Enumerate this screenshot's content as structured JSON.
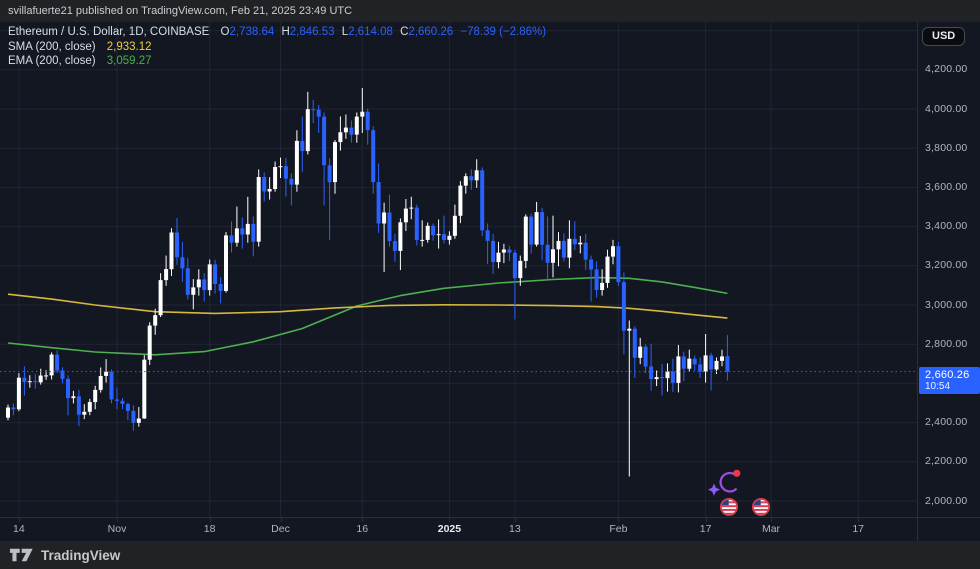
{
  "header": {
    "published_line": "svillafuerte21 published on TradingView.com, Feb 21, 2025 23:49 UTC"
  },
  "toolbar": {
    "currency_button": "USD"
  },
  "legend": {
    "symbol_title": "Ethereum / U.S. Dollar, 1D, COINBASE",
    "open_label": "O",
    "open": "2,738.64",
    "high_label": "H",
    "high": "2,846.53",
    "low_label": "L",
    "low": "2,614.08",
    "close_label": "C",
    "close": "2,660.26",
    "change": "−78.39 (−2.86%)",
    "sma_label": "SMA (200, close)",
    "sma_value": "2,933.12",
    "ema_label": "EMA (200, close)",
    "ema_value": "3,059.27"
  },
  "price_scale": {
    "labels": [
      {
        "text": "4,200.00",
        "price": 4200
      },
      {
        "text": "4,000.00",
        "price": 4000
      },
      {
        "text": "3,800.00",
        "price": 3800
      },
      {
        "text": "3,600.00",
        "price": 3600
      },
      {
        "text": "3,400.00",
        "price": 3400
      },
      {
        "text": "3,200.00",
        "price": 3200
      },
      {
        "text": "3,000.00",
        "price": 3000
      },
      {
        "text": "2,800.00",
        "price": 2800
      },
      {
        "text": "2,400.00",
        "price": 2400
      },
      {
        "text": "2,200.00",
        "price": 2200
      },
      {
        "text": "2,000.00",
        "price": 2000
      }
    ],
    "last_price_label": {
      "price_text": "2,660.26",
      "countdown": "10:54",
      "price": 2660.26
    }
  },
  "time_scale": {
    "ticks": [
      {
        "text": "14",
        "index": 2,
        "bold": false
      },
      {
        "text": "Nov",
        "index": 20,
        "bold": false
      },
      {
        "text": "18",
        "index": 37,
        "bold": false
      },
      {
        "text": "Dec",
        "index": 50,
        "bold": false
      },
      {
        "text": "16",
        "index": 65,
        "bold": false
      },
      {
        "text": "2025",
        "index": 81,
        "bold": true
      },
      {
        "text": "13",
        "index": 93,
        "bold": false
      },
      {
        "text": "Feb",
        "index": 112,
        "bold": false
      },
      {
        "text": "17",
        "index": 128,
        "bold": false
      },
      {
        "text": "Mar",
        "index": 140,
        "bold": false
      },
      {
        "text": "17",
        "index": 156,
        "bold": false
      }
    ]
  },
  "footer": {
    "brand": "TradingView"
  },
  "annotations": {
    "items": [
      "sparkle-flash-badge",
      "us-flag-sticker",
      "us-flag-sticker"
    ]
  },
  "colors": {
    "up": "#FFFFFF",
    "down": "#2962FF",
    "sma": "#D6B83E",
    "ema": "#4CAF50",
    "accent_blue": "#2962FF",
    "grid": "rgba(160,176,210,0.09)",
    "axis_text": "#B2B5BE",
    "chart_bg": "#131722",
    "frame_bg": "#212226",
    "border": "#2A2E39",
    "sticker_red": "#E03A4E",
    "sticker_blue": "#27408B",
    "sparkle_purple": "#9C4DE0",
    "dot_red": "#F23645"
  },
  "chart_data": {
    "type": "candlestick",
    "title": "Ethereum / U.S. Dollar, 1D, COINBASE",
    "interval": "1D",
    "first_candle_date": "2024-10-12",
    "last_candle_date": "2025-02-21",
    "ylim": [
      1920,
      4445
    ],
    "grid_prices": [
      2000,
      2200,
      2400,
      2600,
      2800,
      3000,
      3200,
      3400,
      3600,
      3800,
      4000,
      4200,
      4400
    ],
    "last_price": 2660.26,
    "candles": [
      [
        2425,
        2492,
        2412,
        2477
      ],
      [
        2477,
        2497,
        2438,
        2468
      ],
      [
        2468,
        2652,
        2458,
        2629
      ],
      [
        2629,
        2687,
        2538,
        2607
      ],
      [
        2607,
        2642,
        2578,
        2611
      ],
      [
        2611,
        2648,
        2573,
        2606
      ],
      [
        2606,
        2675,
        2594,
        2640
      ],
      [
        2640,
        2668,
        2618,
        2641
      ],
      [
        2641,
        2758,
        2620,
        2747
      ],
      [
        2747,
        2769,
        2653,
        2666
      ],
      [
        2666,
        2682,
        2600,
        2623
      ],
      [
        2623,
        2641,
        2438,
        2525
      ],
      [
        2525,
        2562,
        2498,
        2534
      ],
      [
        2534,
        2567,
        2382,
        2440
      ],
      [
        2440,
        2494,
        2418,
        2455
      ],
      [
        2455,
        2521,
        2438,
        2505
      ],
      [
        2505,
        2588,
        2468,
        2567
      ],
      [
        2567,
        2681,
        2553,
        2638
      ],
      [
        2638,
        2724,
        2604,
        2659
      ],
      [
        2659,
        2671,
        2498,
        2518
      ],
      [
        2518,
        2579,
        2468,
        2511
      ],
      [
        2511,
        2526,
        2469,
        2495
      ],
      [
        2495,
        2502,
        2411,
        2460
      ],
      [
        2460,
        2489,
        2358,
        2399
      ],
      [
        2399,
        2479,
        2379,
        2421
      ],
      [
        2421,
        2744,
        2419,
        2721
      ],
      [
        2721,
        2912,
        2694,
        2895
      ],
      [
        2895,
        2981,
        2848,
        2948
      ],
      [
        2948,
        3162,
        2939,
        3127
      ],
      [
        3127,
        3252,
        3098,
        3183
      ],
      [
        3183,
        3392,
        3148,
        3370
      ],
      [
        3370,
        3444,
        3205,
        3244
      ],
      [
        3244,
        3322,
        3118,
        3187
      ],
      [
        3187,
        3241,
        3028,
        3052
      ],
      [
        3052,
        3132,
        2978,
        3090
      ],
      [
        3090,
        3182,
        3048,
        3130
      ],
      [
        3130,
        3162,
        3018,
        3076
      ],
      [
        3076,
        3232,
        3048,
        3207
      ],
      [
        3207,
        3231,
        3058,
        3107
      ],
      [
        3107,
        3142,
        3008,
        3072
      ],
      [
        3072,
        3372,
        3064,
        3355
      ],
      [
        3355,
        3426,
        3268,
        3318
      ],
      [
        3318,
        3502,
        3298,
        3391
      ],
      [
        3391,
        3446,
        3288,
        3360
      ],
      [
        3360,
        3552,
        3318,
        3414
      ],
      [
        3414,
        3452,
        3248,
        3323
      ],
      [
        3323,
        3692,
        3298,
        3653
      ],
      [
        3653,
        3676,
        3528,
        3579
      ],
      [
        3579,
        3652,
        3538,
        3592
      ],
      [
        3592,
        3732,
        3578,
        3704
      ],
      [
        3704,
        3752,
        3648,
        3708
      ],
      [
        3708,
        3751,
        3553,
        3644
      ],
      [
        3644,
        3672,
        3508,
        3614
      ],
      [
        3614,
        3892,
        3578,
        3837
      ],
      [
        3837,
        3962,
        3678,
        3785
      ],
      [
        3785,
        4088,
        3768,
        3999
      ],
      [
        3999,
        4046,
        3928,
        3997
      ],
      [
        3997,
        4021,
        3878,
        3961
      ],
      [
        3961,
        3982,
        3508,
        3713
      ],
      [
        3713,
        3748,
        3332,
        3627
      ],
      [
        3627,
        3842,
        3568,
        3831
      ],
      [
        3831,
        3962,
        3788,
        3881
      ],
      [
        3881,
        3972,
        3848,
        3905
      ],
      [
        3905,
        3941,
        3828,
        3869
      ],
      [
        3869,
        3982,
        3828,
        3961
      ],
      [
        3961,
        4107,
        3878,
        3986
      ],
      [
        3986,
        4002,
        3818,
        3892
      ],
      [
        3892,
        3912,
        3568,
        3627
      ],
      [
        3627,
        3722,
        3368,
        3416
      ],
      [
        3416,
        3522,
        3168,
        3472
      ],
      [
        3472,
        3562,
        3298,
        3326
      ],
      [
        3326,
        3362,
        3221,
        3276
      ],
      [
        3276,
        3442,
        3178,
        3422
      ],
      [
        3422,
        3541,
        3378,
        3492
      ],
      [
        3492,
        3552,
        3438,
        3497
      ],
      [
        3497,
        3512,
        3304,
        3331
      ],
      [
        3331,
        3432,
        3298,
        3332
      ],
      [
        3332,
        3421,
        3318,
        3404
      ],
      [
        3404,
        3416,
        3328,
        3356
      ],
      [
        3356,
        3436,
        3288,
        3361
      ],
      [
        3361,
        3456,
        3314,
        3332
      ],
      [
        3332,
        3376,
        3308,
        3353
      ],
      [
        3353,
        3512,
        3338,
        3455
      ],
      [
        3455,
        3632,
        3418,
        3609
      ],
      [
        3609,
        3672,
        3568,
        3657
      ],
      [
        3657,
        3692,
        3588,
        3636
      ],
      [
        3636,
        3744,
        3598,
        3687
      ],
      [
        3687,
        3702,
        3352,
        3381
      ],
      [
        3381,
        3416,
        3208,
        3327
      ],
      [
        3327,
        3362,
        3158,
        3219
      ],
      [
        3219,
        3322,
        3188,
        3267
      ],
      [
        3267,
        3312,
        3214,
        3283
      ],
      [
        3283,
        3302,
        3224,
        3267
      ],
      [
        3267,
        3281,
        2926,
        3137
      ],
      [
        3137,
        3252,
        3098,
        3225
      ],
      [
        3225,
        3462,
        3188,
        3451
      ],
      [
        3451,
        3466,
        3262,
        3308
      ],
      [
        3308,
        3526,
        3298,
        3474
      ],
      [
        3474,
        3496,
        3228,
        3307
      ],
      [
        3307,
        3452,
        3128,
        3215
      ],
      [
        3215,
        3456,
        3141,
        3284
      ],
      [
        3284,
        3372,
        3198,
        3327
      ],
      [
        3327,
        3366,
        3221,
        3242
      ],
      [
        3242,
        3432,
        3188,
        3338
      ],
      [
        3338,
        3428,
        3281,
        3310
      ],
      [
        3310,
        3352,
        3264,
        3318
      ],
      [
        3318,
        3362,
        3178,
        3232
      ],
      [
        3232,
        3252,
        3018,
        3181
      ],
      [
        3181,
        3223,
        3038,
        3077
      ],
      [
        3077,
        3182,
        3048,
        3113
      ],
      [
        3113,
        3282,
        3088,
        3247
      ],
      [
        3247,
        3332,
        3208,
        3300
      ],
      [
        3300,
        3322,
        3098,
        3117
      ],
      [
        3117,
        3166,
        2748,
        2869
      ],
      [
        2869,
        2921,
        2125,
        2879
      ],
      [
        2879,
        2892,
        2628,
        2731
      ],
      [
        2731,
        2832,
        2698,
        2788
      ],
      [
        2788,
        2799,
        2652,
        2686
      ],
      [
        2686,
        2802,
        2562,
        2622
      ],
      [
        2622,
        2666,
        2586,
        2632
      ],
      [
        2632,
        2699,
        2538,
        2627
      ],
      [
        2627,
        2702,
        2558,
        2661
      ],
      [
        2661,
        2726,
        2556,
        2603
      ],
      [
        2603,
        2796,
        2554,
        2738
      ],
      [
        2738,
        2762,
        2611,
        2675
      ],
      [
        2675,
        2772,
        2658,
        2726
      ],
      [
        2726,
        2742,
        2663,
        2697
      ],
      [
        2697,
        2732,
        2628,
        2661
      ],
      [
        2661,
        2852,
        2604,
        2743
      ],
      [
        2743,
        2756,
        2564,
        2671
      ],
      [
        2671,
        2732,
        2648,
        2715
      ],
      [
        2715,
        2772,
        2688,
        2738
      ],
      [
        2738.64,
        2846.53,
        2614.08,
        2660.26
      ]
    ],
    "sma_200": {
      "name": "SMA (200, close)",
      "current": 2933.12,
      "points": [
        [
          0,
          3055
        ],
        [
          8,
          3030
        ],
        [
          16,
          3000
        ],
        [
          27,
          2966
        ],
        [
          38,
          2957
        ],
        [
          50,
          2966
        ],
        [
          60,
          2985
        ],
        [
          70,
          2998
        ],
        [
          80,
          3001
        ],
        [
          90,
          3000
        ],
        [
          100,
          2997
        ],
        [
          108,
          2992
        ],
        [
          114,
          2983
        ],
        [
          120,
          2968
        ],
        [
          126,
          2950
        ],
        [
          132,
          2933
        ]
      ]
    },
    "ema_200": {
      "name": "EMA (200, close)",
      "current": 3059.27,
      "points": [
        [
          0,
          2806
        ],
        [
          8,
          2782
        ],
        [
          16,
          2760
        ],
        [
          27,
          2746
        ],
        [
          36,
          2762
        ],
        [
          45,
          2812
        ],
        [
          54,
          2880
        ],
        [
          64,
          2995
        ],
        [
          72,
          3048
        ],
        [
          80,
          3085
        ],
        [
          90,
          3112
        ],
        [
          100,
          3130
        ],
        [
          108,
          3140
        ],
        [
          114,
          3136
        ],
        [
          120,
          3118
        ],
        [
          126,
          3090
        ],
        [
          132,
          3059
        ]
      ]
    }
  }
}
